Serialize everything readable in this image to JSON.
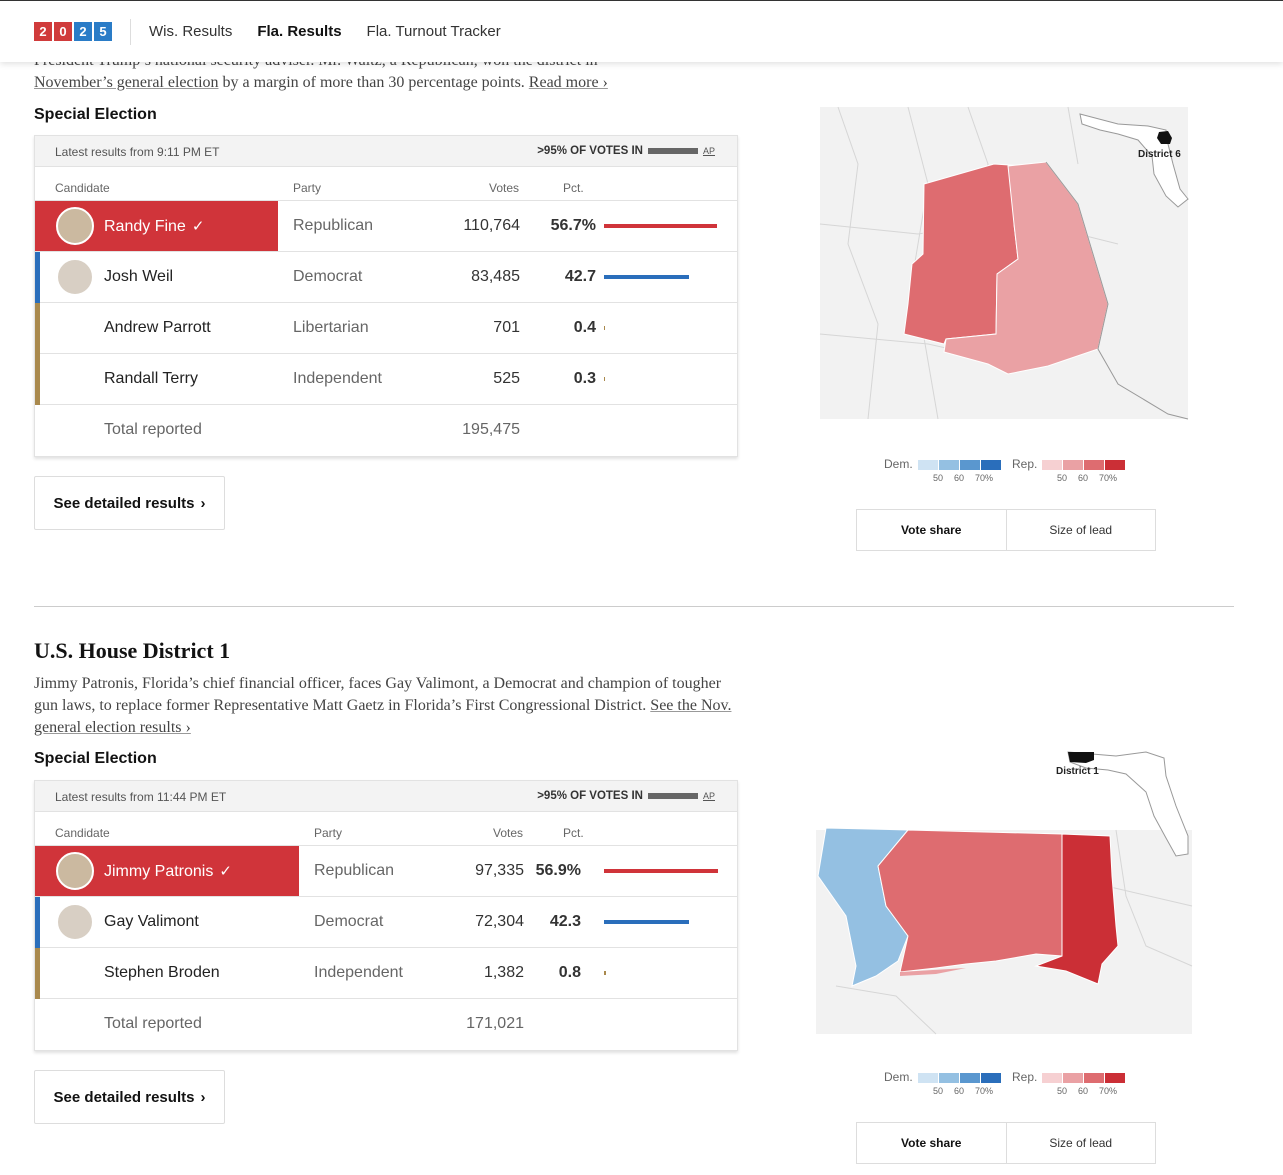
{
  "nav": {
    "logo_digits": [
      "2",
      "0",
      "2",
      "5"
    ],
    "links": [
      {
        "label": "Wis. Results",
        "active": false
      },
      {
        "label": "Fla. Results",
        "active": true
      },
      {
        "label": "Fla. Turnout Tracker",
        "active": false
      }
    ]
  },
  "race1": {
    "intro_line1": "President Trump’s national security adviser. Mr. Waltz, a Republican, won the district in",
    "intro_link": "November’s general election",
    "intro_rest": " by a margin of more than 30 percentage points.",
    "read_more": "Read more ›",
    "label": "Special Election",
    "latest": "Latest results from 9:11 PM ET",
    "votes_in": ">95% OF VOTES IN",
    "ap": "AP",
    "columns": {
      "candidate": "Candidate",
      "party": "Party",
      "votes": "Votes",
      "pct": "Pct."
    },
    "candidates": [
      {
        "name": "Randy Fine",
        "winner": true,
        "party": "Republican",
        "votes": "110,764",
        "pct": "56.7%",
        "pct_value": 56.7,
        "color": "#d0343a"
      },
      {
        "name": "Josh Weil",
        "winner": false,
        "party": "Democrat",
        "votes": "83,485",
        "pct": "42.7",
        "pct_value": 42.7,
        "color": "#2a6ebb"
      },
      {
        "name": "Andrew Parrott",
        "winner": false,
        "party": "Libertarian",
        "votes": "701",
        "pct": "0.4",
        "pct_value": 0.4,
        "color": "#a9894d"
      },
      {
        "name": "Randall Terry",
        "winner": false,
        "party": "Independent",
        "votes": "525",
        "pct": "0.3",
        "pct_value": 0.3,
        "color": "#a9894d"
      }
    ],
    "total_label": "Total reported",
    "total_votes": "195,475",
    "detail_button": "See detailed results",
    "map_label": "District 6"
  },
  "race2": {
    "title": "U.S. House District 1",
    "desc": "Jimmy Patronis, Florida’s chief financial officer, faces Gay Valimont, a Democrat and champion of tougher gun laws, to replace former Representative Matt Gaetz in Florida’s First Congressional District.",
    "desc_link": "See the Nov. general election results ›",
    "label": "Special Election",
    "latest": "Latest results from 11:44 PM ET",
    "votes_in": ">95% OF VOTES IN",
    "ap": "AP",
    "columns": {
      "candidate": "Candidate",
      "party": "Party",
      "votes": "Votes",
      "pct": "Pct."
    },
    "candidates": [
      {
        "name": "Jimmy Patronis",
        "winner": true,
        "party": "Republican",
        "votes": "97,335",
        "pct": "56.9%",
        "pct_value": 56.9,
        "color": "#d0343a"
      },
      {
        "name": "Gay Valimont",
        "winner": false,
        "party": "Democrat",
        "votes": "72,304",
        "pct": "42.3",
        "pct_value": 42.3,
        "color": "#2a6ebb"
      },
      {
        "name": "Stephen Broden",
        "winner": false,
        "party": "Independent",
        "votes": "1,382",
        "pct": "0.8",
        "pct_value": 0.8,
        "color": "#a9894d"
      }
    ],
    "total_label": "Total reported",
    "total_votes": "171,021",
    "detail_button": "See detailed results",
    "map_label": "District 1"
  },
  "legend": {
    "dem_label": "Dem.",
    "rep_label": "Rep.",
    "ticks": [
      "50",
      "60",
      "70%"
    ],
    "dem_colors": [
      "#cfe3f3",
      "#94c0e2",
      "#5a97cf",
      "#2a6ebb"
    ],
    "rep_colors": [
      "#f6d0d2",
      "#eaa1a4",
      "#de6c70",
      "#cb2f36"
    ]
  },
  "toggle": {
    "vote_share": "Vote share",
    "size_of_lead": "Size of lead"
  }
}
